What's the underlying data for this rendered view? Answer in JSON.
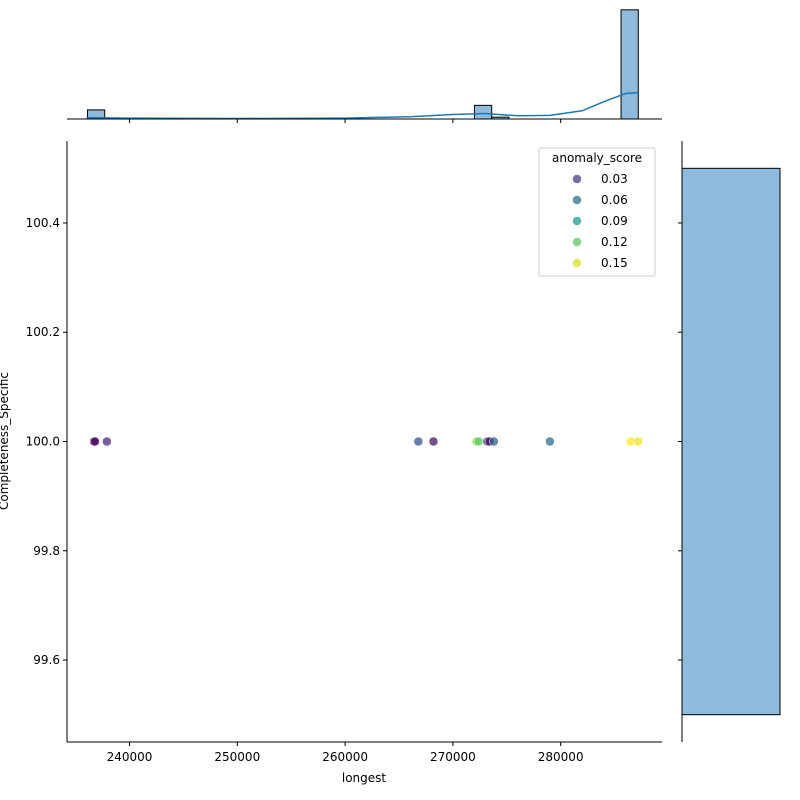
{
  "chart_data": {
    "type": "scatter",
    "title": "",
    "xlabel": "longest",
    "ylabel": "Completeness_Specific",
    "xlim": [
      234200,
      289400
    ],
    "ylim": [
      99.45,
      100.55
    ],
    "x_ticks": [
      240000,
      250000,
      260000,
      270000,
      280000
    ],
    "x_tick_labels": [
      "240000",
      "250000",
      "260000",
      "270000",
      "280000"
    ],
    "y_ticks": [
      99.6,
      99.8,
      100.0,
      100.2,
      100.4
    ],
    "y_tick_labels": [
      "99.6",
      "99.8",
      "100.0",
      "100.2",
      "100.4"
    ],
    "grid": false,
    "hue": "anomaly_score",
    "points": [
      {
        "x": 236700,
        "y": 100.0,
        "score": 0.002
      },
      {
        "x": 236800,
        "y": 100.0,
        "score": 0.004
      },
      {
        "x": 237900,
        "y": 100.0,
        "score": 0.02
      },
      {
        "x": 266800,
        "y": 100.0,
        "score": 0.04
      },
      {
        "x": 268200,
        "y": 100.0,
        "score": 0.01
      },
      {
        "x": 272200,
        "y": 100.0,
        "score": 0.13
      },
      {
        "x": 272400,
        "y": 100.0,
        "score": 0.12
      },
      {
        "x": 273200,
        "y": 100.0,
        "score": 0.02
      },
      {
        "x": 273400,
        "y": 100.0,
        "score": 0.005
      },
      {
        "x": 273800,
        "y": 100.0,
        "score": 0.05
      },
      {
        "x": 279000,
        "y": 100.0,
        "score": 0.06
      },
      {
        "x": 286500,
        "y": 100.0,
        "score": 0.16
      },
      {
        "x": 287200,
        "y": 100.0,
        "score": 0.155
      }
    ],
    "legend": {
      "title": "anomaly_score",
      "placement": "top-right",
      "entries": [
        {
          "label": "0.03",
          "value": 0.03
        },
        {
          "label": "0.06",
          "value": 0.06
        },
        {
          "label": "0.09",
          "value": 0.09
        },
        {
          "label": "0.12",
          "value": 0.12
        },
        {
          "label": "0.15",
          "value": 0.15
        }
      ]
    },
    "colormap": "viridis",
    "hue_range": [
      0.0,
      0.16
    ],
    "marginal_x": {
      "type": "histogram",
      "bins": [
        {
          "start": 236100,
          "end": 237700,
          "count": 1
        },
        {
          "start": 272000,
          "end": 273600,
          "count": 1.5
        },
        {
          "start": 273600,
          "end": 275200,
          "count": 0.2
        },
        {
          "start": 285600,
          "end": 287200,
          "count": 12
        }
      ],
      "kde": [
        [
          236000,
          0.15
        ],
        [
          240000,
          0.1
        ],
        [
          250000,
          0.05
        ],
        [
          260000,
          0.1
        ],
        [
          266000,
          0.25
        ],
        [
          270000,
          0.5
        ],
        [
          273000,
          0.6
        ],
        [
          276000,
          0.35
        ],
        [
          279000,
          0.4
        ],
        [
          282000,
          0.9
        ],
        [
          284000,
          1.9
        ],
        [
          286000,
          2.8
        ],
        [
          287200,
          2.9
        ]
      ],
      "count_max": 12.2
    },
    "marginal_y": {
      "type": "histogram",
      "bins": [
        {
          "start": 99.5,
          "end": 100.5,
          "count": 1
        }
      ]
    },
    "colors": {
      "bar_fill": "#8fbadb",
      "bar_edge": "#000000",
      "kde_line": "#1f77b4"
    }
  }
}
